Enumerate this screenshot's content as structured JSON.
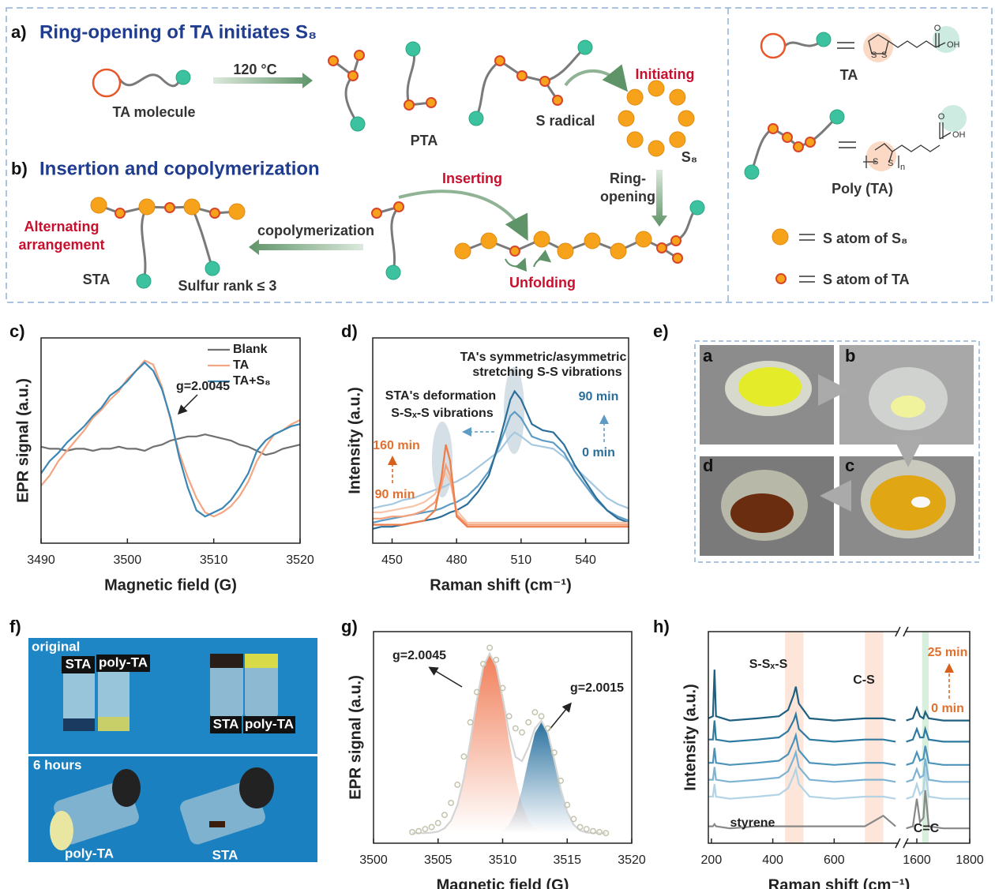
{
  "diagram": {
    "a_label": "a)",
    "a_title": "Ring-opening of TA initiates S₈",
    "temp": "120 °C",
    "ta_molecule": "TA molecule",
    "pta": "PTA",
    "s_radical": "S radical",
    "initiating": "Initiating",
    "s8": "S₈",
    "b_label": "b)",
    "b_title": "Insertion and copolymerization",
    "inserting": "Inserting",
    "ring_opening_1": "Ring-",
    "ring_opening_2": "opening",
    "alternating_1": "Alternating",
    "alternating_2": "arrangement",
    "copolymerization": "copolymerization",
    "sta": "STA",
    "sulfur_rank": "Sulfur rank ≤ 3",
    "unfolding": "Unfolding",
    "legend_ta": "TA",
    "legend_poly": "Poly (TA)",
    "legend_s8_atom": "S atom of S₈",
    "legend_ta_atom": "S atom of TA",
    "chem": {
      "s": "S",
      "o": "O",
      "oh": "OH",
      "n": "n"
    }
  },
  "chart_data": [
    {
      "type": "line",
      "panel_label": "c)",
      "xlabel": "Magnetic field (G)",
      "ylabel": "EPR signal (a.u.)",
      "xlim": [
        3490,
        3520
      ],
      "xticks": [
        3490,
        3500,
        3510,
        3520
      ],
      "ylim": [
        0,
        100
      ],
      "legend": "upper right",
      "x": [
        3490,
        3491,
        3492,
        3493,
        3494,
        3495,
        3496,
        3497,
        3498,
        3499,
        3500,
        3501,
        3502,
        3503,
        3504,
        3505,
        3506,
        3507,
        3508,
        3509,
        3510,
        3511,
        3512,
        3513,
        3514,
        3515,
        3516,
        3517,
        3518,
        3519,
        3520
      ],
      "series": [
        {
          "name": "Blank",
          "color": "#707070",
          "values": [
            47,
            46,
            46,
            45,
            46,
            46,
            45,
            46,
            46,
            47,
            46,
            46,
            45,
            47,
            48,
            50,
            51,
            52,
            52,
            53,
            52,
            51,
            50,
            48,
            47,
            45,
            43,
            44,
            46,
            47,
            48
          ]
        },
        {
          "name": "TA",
          "color": "#f4a582",
          "values": [
            28,
            33,
            40,
            45,
            50,
            55,
            61,
            65,
            70,
            74,
            80,
            84,
            89,
            87,
            76,
            60,
            44,
            32,
            22,
            15,
            13,
            15,
            18,
            23,
            30,
            40,
            47,
            53,
            55,
            58,
            60
          ]
        },
        {
          "name": "TA+S₈",
          "color": "#3a86b4",
          "values": [
            34,
            40,
            44,
            49,
            53,
            57,
            62,
            66,
            72,
            75,
            79,
            84,
            88,
            84,
            75,
            61,
            42,
            27,
            16,
            13,
            15,
            17,
            21,
            27,
            34,
            45,
            50,
            53,
            55,
            57,
            58
          ]
        }
      ],
      "annotations": [
        {
          "text": "g=2.0045",
          "color": "#222"
        }
      ]
    },
    {
      "type": "line",
      "panel_label": "d)",
      "xlabel": "Raman shift (cm⁻¹)",
      "ylabel": "Intensity (a.u.)",
      "xlim": [
        441,
        560
      ],
      "xticks": [
        450,
        480,
        510,
        540
      ],
      "ylim": [
        0,
        100
      ],
      "x": [
        441,
        445,
        450,
        455,
        460,
        465,
        470,
        473,
        475,
        477,
        480,
        485,
        490,
        495,
        500,
        505,
        507,
        510,
        515,
        520,
        525,
        530,
        535,
        540,
        545,
        550,
        555,
        560
      ],
      "series": [
        {
          "color": "#a5c8e0",
          "values": [
            17,
            18,
            19,
            21,
            22,
            24,
            26,
            27,
            28,
            29,
            30,
            33,
            37,
            41,
            45,
            52,
            54,
            52,
            48,
            47,
            46,
            42,
            37,
            32,
            27,
            22,
            19,
            17
          ]
        },
        {
          "color": "#5d9cc4",
          "values": [
            10,
            11,
            12,
            13,
            14,
            15,
            16,
            17,
            18,
            19,
            20,
            23,
            28,
            35,
            48,
            62,
            64,
            61,
            52,
            50,
            49,
            44,
            35,
            28,
            21,
            16,
            13,
            11
          ]
        },
        {
          "color": "#2b6e99",
          "values": [
            7,
            8,
            8,
            9,
            10,
            11,
            12,
            13,
            14,
            15,
            16,
            19,
            25,
            33,
            50,
            70,
            74,
            70,
            58,
            55,
            54,
            48,
            38,
            30,
            22,
            16,
            12,
            10
          ]
        },
        {
          "color": "#f8c4a8",
          "values": [
            15,
            15,
            16,
            17,
            18,
            20,
            24,
            30,
            34,
            30,
            16,
            10,
            10,
            10,
            10,
            10,
            10,
            10,
            10,
            10,
            10,
            10,
            10,
            10,
            10,
            10,
            10,
            10
          ]
        },
        {
          "color": "#f4a07a",
          "values": [
            12,
            12,
            13,
            13,
            14,
            16,
            20,
            28,
            38,
            33,
            14,
            9,
            9,
            9,
            9,
            9,
            9,
            9,
            9,
            9,
            9,
            9,
            9,
            9,
            9,
            9,
            9,
            9
          ]
        },
        {
          "color": "#f07c4a",
          "values": [
            9,
            9,
            9,
            9,
            10,
            11,
            16,
            32,
            48,
            40,
            13,
            8,
            8,
            8,
            8,
            8,
            8,
            8,
            8,
            8,
            8,
            8,
            8,
            8,
            8,
            8,
            8,
            8
          ]
        }
      ],
      "annotations": [
        {
          "text": "TA's symmetric/asymmetric",
          "color": "#222"
        },
        {
          "text": "stretching S-S vibrations",
          "color": "#222"
        },
        {
          "text": "STA's deformation",
          "color": "#222"
        },
        {
          "text": "S-Sₓ-S vibrations",
          "color": "#222"
        },
        {
          "text": "90 min",
          "color": "#2b6e99"
        },
        {
          "text": "0 min",
          "color": "#2b6e99"
        },
        {
          "text": "160 min",
          "color": "#e0702e"
        },
        {
          "text": "90 min",
          "color": "#e0702e"
        }
      ]
    },
    {
      "type": "line",
      "panel_label": "g)",
      "xlabel": "Magnetic field (G)",
      "ylabel": "EPR signal (a.u.)",
      "xlim": [
        3500,
        3520
      ],
      "xticks": [
        3500,
        3505,
        3510,
        3515,
        3520
      ],
      "ylim": [
        -5,
        100
      ],
      "x": [
        3503,
        3503.5,
        3504,
        3504.5,
        3505,
        3505.5,
        3506,
        3506.5,
        3507,
        3507.5,
        3508,
        3508.5,
        3509,
        3509.5,
        3510,
        3510.5,
        3511,
        3511.5,
        3512,
        3512.5,
        3513,
        3513.5,
        3514,
        3514.5,
        3515,
        3515.5,
        3516,
        3516.5,
        3517,
        3517.5,
        3518
      ],
      "series": [
        {
          "type": "area",
          "color": "#f07850",
          "values": [
            0,
            0,
            0,
            0.2,
            0.8,
            2.4,
            6.2,
            14,
            27.3,
            45.7,
            66,
            82.6,
            89,
            82.6,
            66,
            45.7,
            27.3,
            14,
            6.2,
            2.4,
            0.8,
            0.2,
            0,
            0,
            0,
            0,
            0,
            0,
            0,
            0,
            0
          ]
        },
        {
          "type": "area",
          "color": "#1f6a9a",
          "values": [
            0,
            0,
            0,
            0,
            0,
            0,
            0,
            0,
            0,
            0,
            0,
            0,
            0.1,
            0.3,
            1.3,
            4.2,
            10.5,
            21.7,
            36.4,
            49.6,
            55,
            49.6,
            36.4,
            21.7,
            10.5,
            4.2,
            1.3,
            0.3,
            0.1,
            0,
            0
          ]
        },
        {
          "type": "line",
          "color": "#d4d4d4",
          "values": [
            0,
            0,
            0,
            0.2,
            0.8,
            2.4,
            6.2,
            14,
            27.3,
            45.7,
            66,
            82.6,
            89.1,
            82.9,
            67.3,
            49.9,
            37.8,
            35.7,
            42.6,
            52,
            55.8,
            49.8,
            36.4,
            21.7,
            10.5,
            4.2,
            1.3,
            0.3,
            0.1,
            0,
            0
          ]
        },
        {
          "type": "scatter",
          "color": "#c3c3ad",
          "values": [
            0.5,
            1,
            2,
            3,
            5,
            9,
            15,
            24,
            38,
            55,
            70,
            84,
            92,
            86,
            72,
            58,
            52,
            50,
            55,
            60,
            58,
            52,
            40,
            26,
            14,
            7,
            3,
            2,
            1,
            0.5,
            0
          ]
        }
      ],
      "annotations": [
        {
          "text": "g=2.0045",
          "color": "#222"
        },
        {
          "text": "g=2.0015",
          "color": "#222"
        }
      ]
    },
    {
      "type": "line",
      "panel_label": "h)",
      "xlabel": "Raman shift (cm⁻¹)",
      "ylabel": "Intensity (a.u.)",
      "xlim": [
        190,
        1800
      ],
      "x_break": [
        810,
        1555
      ],
      "xticks": [
        200,
        400,
        600,
        1600,
        1800
      ],
      "ylim": [
        0,
        100
      ],
      "x": [
        190,
        205,
        210,
        215,
        260,
        350,
        420,
        450,
        468,
        475,
        485,
        520,
        600,
        700,
        760,
        800,
        1560,
        1585,
        1600,
        1612,
        1625,
        1632,
        1645,
        1700,
        1800
      ],
      "bands": [
        {
          "range": [
            440,
            500
          ],
          "color": "#fbd3c0"
        },
        {
          "range": [
            700,
            760
          ],
          "color": "#fbd3c0"
        },
        {
          "range": [
            1620,
            1645
          ],
          "color": "#bfe5c8"
        }
      ],
      "series": [
        {
          "color": "#888888",
          "values": [
            8,
            8,
            9,
            8,
            7,
            8,
            8,
            8,
            8,
            8,
            8,
            8,
            8,
            8,
            13,
            8,
            7,
            8,
            21,
            10,
            12,
            25,
            8,
            7,
            7
          ]
        },
        {
          "color": "#b3d3e6",
          "values": [
            22,
            22,
            28,
            22,
            21,
            22,
            23,
            26,
            32,
            35,
            28,
            22,
            21,
            22,
            22,
            21,
            21,
            22,
            28,
            23,
            25,
            35,
            22,
            21,
            21
          ]
        },
        {
          "color": "#7fb3d3",
          "values": [
            30,
            30,
            36,
            30,
            29,
            30,
            31,
            34,
            40,
            43,
            36,
            30,
            29,
            30,
            30,
            29,
            29,
            30,
            35,
            31,
            32,
            40,
            30,
            29,
            29
          ]
        },
        {
          "color": "#4b93bb",
          "values": [
            38,
            38,
            45,
            38,
            37,
            38,
            39,
            42,
            48,
            51,
            44,
            38,
            37,
            38,
            38,
            37,
            37,
            38,
            43,
            39,
            40,
            46,
            38,
            37,
            37
          ]
        },
        {
          "color": "#2e7aa0",
          "values": [
            49,
            49,
            58,
            49,
            48,
            49,
            50,
            53,
            58,
            61,
            54,
            49,
            48,
            49,
            49,
            48,
            48,
            49,
            54,
            50,
            50,
            54,
            49,
            48,
            48
          ]
        },
        {
          "color": "#1f5f80",
          "values": [
            59,
            60,
            82,
            60,
            58,
            59,
            60,
            63,
            70,
            74,
            66,
            59,
            58,
            59,
            59,
            58,
            58,
            59,
            64,
            60,
            59,
            62,
            59,
            58,
            58
          ]
        }
      ],
      "annotations": [
        {
          "text": "S-Sₓ-S",
          "color": "#222"
        },
        {
          "text": "C-S",
          "color": "#222"
        },
        {
          "text": "styrene",
          "color": "#222"
        },
        {
          "text": "C=C",
          "color": "#222"
        },
        {
          "text": "25 min",
          "color": "#e0702e"
        },
        {
          "text": "0 min",
          "color": "#e0702e"
        }
      ]
    }
  ],
  "photos": {
    "e": {
      "label": "e)",
      "panels": [
        "a",
        "b",
        "c",
        "d"
      ]
    },
    "f": {
      "label": "f)",
      "top": "original",
      "labels_top": [
        "STA",
        "poly-TA",
        "STA",
        "poly-TA"
      ],
      "bottom": "6 hours",
      "labels_bottom": [
        "poly-TA",
        "STA"
      ]
    }
  }
}
